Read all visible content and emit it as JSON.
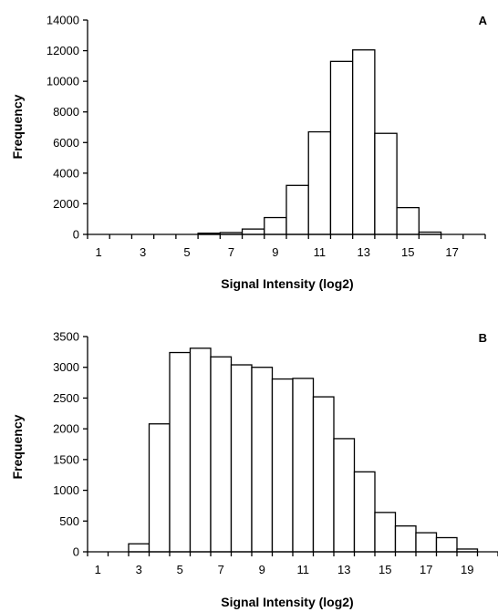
{
  "chart_data": [
    {
      "type": "bar",
      "panel_label": "A",
      "xlabel": "Signal Intensity (log2)",
      "ylabel": "Frequency",
      "ylim": [
        0,
        14000
      ],
      "y_ticks": [
        0,
        2000,
        4000,
        6000,
        8000,
        10000,
        12000,
        14000
      ],
      "xlim": [
        0.5,
        18.5
      ],
      "x_ticks": [
        1,
        3,
        5,
        7,
        9,
        11,
        13,
        15,
        17
      ],
      "grid": false,
      "legend": "none",
      "bars": [
        {
          "x": 6,
          "value": 80
        },
        {
          "x": 7,
          "value": 120
        },
        {
          "x": 8,
          "value": 350
        },
        {
          "x": 9,
          "value": 1100
        },
        {
          "x": 10,
          "value": 3200
        },
        {
          "x": 11,
          "value": 6700
        },
        {
          "x": 12,
          "value": 11300
        },
        {
          "x": 13,
          "value": 12050
        },
        {
          "x": 14,
          "value": 6600
        },
        {
          "x": 15,
          "value": 1750
        },
        {
          "x": 16,
          "value": 150
        }
      ]
    },
    {
      "type": "bar",
      "panel_label": "B",
      "xlabel": "Signal Intensity (log2)",
      "ylabel": "Frequency",
      "ylim": [
        0,
        3500
      ],
      "y_ticks": [
        0,
        500,
        1000,
        1500,
        2000,
        2500,
        3000,
        3500
      ],
      "xlim": [
        0.5,
        20.5
      ],
      "x_ticks": [
        1,
        3,
        5,
        7,
        9,
        11,
        13,
        15,
        17,
        19
      ],
      "grid": false,
      "legend": "none",
      "bars": [
        {
          "x": 3,
          "value": 130
        },
        {
          "x": 4,
          "value": 2080
        },
        {
          "x": 5,
          "value": 3240
        },
        {
          "x": 6,
          "value": 3310
        },
        {
          "x": 7,
          "value": 3170
        },
        {
          "x": 8,
          "value": 3040
        },
        {
          "x": 9,
          "value": 3000
        },
        {
          "x": 10,
          "value": 2810
        },
        {
          "x": 11,
          "value": 2820
        },
        {
          "x": 12,
          "value": 2520
        },
        {
          "x": 13,
          "value": 1840
        },
        {
          "x": 14,
          "value": 1300
        },
        {
          "x": 15,
          "value": 640
        },
        {
          "x": 16,
          "value": 420
        },
        {
          "x": 17,
          "value": 310
        },
        {
          "x": 18,
          "value": 230
        },
        {
          "x": 19,
          "value": 45
        }
      ]
    }
  ]
}
